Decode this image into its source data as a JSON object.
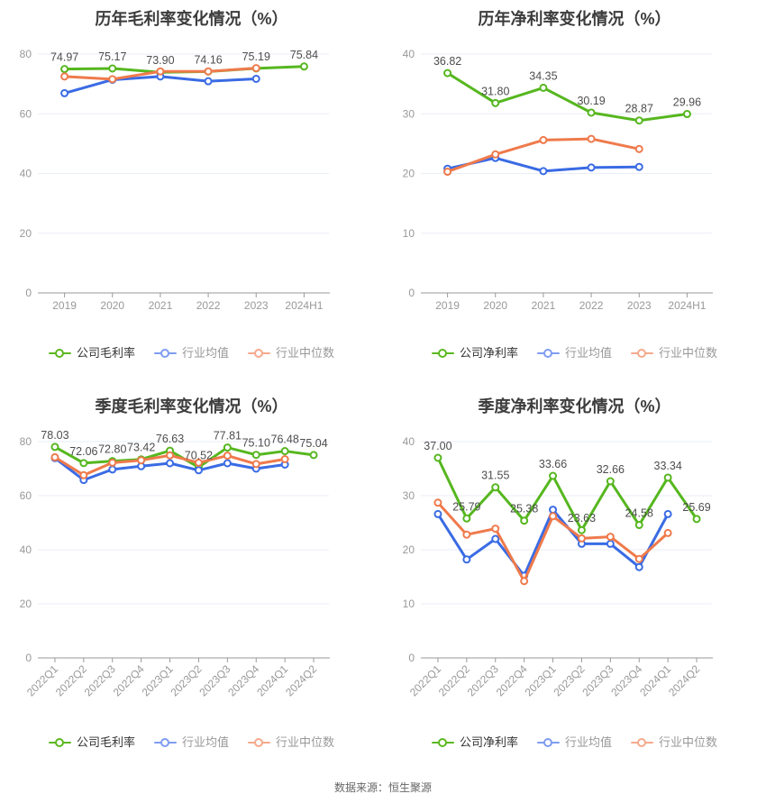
{
  "footer": {
    "source_note": "数据来源：恒生聚源"
  },
  "colors": {
    "company": "#56b71f",
    "industry_avg": "#3a6be4",
    "industry_median": "#ef7a4c",
    "legend_company": "#5cb821",
    "legend_industry_avg": "#7e9cf0",
    "legend_industry_median": "#f5a98c",
    "grid": "#e9eef7",
    "axis": "#999999",
    "tick_label": "#999999",
    "value_label": "#4d4d4d",
    "title": "#3c3c3c"
  },
  "chart_data": [
    {
      "id": "annual-gross-margin",
      "type": "line",
      "title": "历年毛利率变化情况（%）",
      "categories": [
        "2019",
        "2020",
        "2021",
        "2022",
        "2023",
        "2024H1"
      ],
      "ylim": [
        0,
        80
      ],
      "yticks": [
        0,
        20,
        40,
        60,
        80
      ],
      "grid": true,
      "legend_position": "bottom",
      "rotate_x_labels": false,
      "series": [
        {
          "key": "company",
          "name": "公司毛利率",
          "color": "#56b71f",
          "legend_color": "#5cb821",
          "point_labels": true,
          "values": [
            74.97,
            75.17,
            73.9,
            74.16,
            75.19,
            75.84
          ]
        },
        {
          "key": "industry-avg",
          "name": "行业均值",
          "color": "#3a6be4",
          "legend_color": "#7e9cf0",
          "point_labels": false,
          "values": [
            66.9,
            71.4,
            72.5,
            70.9,
            71.7
          ]
        },
        {
          "key": "industry-median",
          "name": "行业中位数",
          "color": "#ef7a4c",
          "legend_color": "#f5a98c",
          "point_labels": false,
          "values": [
            72.5,
            71.6,
            74.2,
            74.2,
            75.3
          ]
        }
      ]
    },
    {
      "id": "annual-net-margin",
      "type": "line",
      "title": "历年净利率变化情况（%）",
      "categories": [
        "2019",
        "2020",
        "2021",
        "2022",
        "2023",
        "2024H1"
      ],
      "ylim": [
        0,
        40
      ],
      "yticks": [
        0,
        10,
        20,
        30,
        40
      ],
      "grid": true,
      "legend_position": "bottom",
      "rotate_x_labels": false,
      "series": [
        {
          "key": "company",
          "name": "公司净利率",
          "color": "#56b71f",
          "legend_color": "#5cb821",
          "point_labels": true,
          "values": [
            36.82,
            31.8,
            34.35,
            30.19,
            28.87,
            29.96
          ]
        },
        {
          "key": "industry-avg",
          "name": "行业均值",
          "color": "#3a6be4",
          "legend_color": "#7e9cf0",
          "point_labels": false,
          "values": [
            20.8,
            22.6,
            20.4,
            21.0,
            21.1
          ]
        },
        {
          "key": "industry-median",
          "name": "行业中位数",
          "color": "#ef7a4c",
          "legend_color": "#f5a98c",
          "point_labels": false,
          "values": [
            20.3,
            23.2,
            25.6,
            25.8,
            24.1
          ]
        }
      ]
    },
    {
      "id": "quarterly-gross-margin",
      "type": "line",
      "title": "季度毛利率变化情况（%）",
      "categories": [
        "2022Q1",
        "2022Q2",
        "2022Q3",
        "2022Q4",
        "2023Q1",
        "2023Q2",
        "2023Q3",
        "2023Q4",
        "2024Q1",
        "2024Q2"
      ],
      "ylim": [
        0,
        80
      ],
      "yticks": [
        0,
        20,
        40,
        60,
        80
      ],
      "grid": true,
      "legend_position": "bottom",
      "rotate_x_labels": true,
      "series": [
        {
          "key": "company",
          "name": "公司毛利率",
          "color": "#56b71f",
          "legend_color": "#5cb821",
          "point_labels": true,
          "values": [
            78.03,
            72.06,
            72.8,
            73.42,
            76.63,
            70.52,
            77.81,
            75.1,
            76.48,
            75.04
          ]
        },
        {
          "key": "industry-avg",
          "name": "行业均值",
          "color": "#3a6be4",
          "legend_color": "#7e9cf0",
          "point_labels": false,
          "values": [
            73.9,
            65.8,
            69.7,
            70.9,
            72.0,
            69.4,
            72.0,
            70.0,
            71.5
          ]
        },
        {
          "key": "industry-median",
          "name": "行业中位数",
          "color": "#ef7a4c",
          "legend_color": "#f5a98c",
          "point_labels": false,
          "values": [
            74.2,
            67.6,
            72.2,
            73.1,
            74.9,
            72.2,
            74.8,
            71.7,
            73.5
          ]
        }
      ]
    },
    {
      "id": "quarterly-net-margin",
      "type": "line",
      "title": "季度净利率变化情况（%）",
      "categories": [
        "2022Q1",
        "2022Q2",
        "2022Q3",
        "2022Q4",
        "2023Q1",
        "2023Q2",
        "2023Q3",
        "2023Q4",
        "2024Q1",
        "2024Q2"
      ],
      "ylim": [
        0,
        40
      ],
      "yticks": [
        0,
        10,
        20,
        30,
        40
      ],
      "grid": true,
      "legend_position": "bottom",
      "rotate_x_labels": true,
      "series": [
        {
          "key": "company",
          "name": "公司净利率",
          "color": "#56b71f",
          "legend_color": "#5cb821",
          "point_labels": true,
          "values": [
            37.0,
            25.79,
            31.55,
            25.38,
            33.66,
            23.63,
            32.66,
            24.58,
            33.34,
            25.69
          ]
        },
        {
          "key": "industry-avg",
          "name": "行业均值",
          "color": "#3a6be4",
          "legend_color": "#7e9cf0",
          "point_labels": false,
          "values": [
            26.6,
            18.2,
            22.0,
            15.2,
            27.4,
            21.1,
            21.1,
            16.8,
            26.6
          ]
        },
        {
          "key": "industry-median",
          "name": "行业中位数",
          "color": "#ef7a4c",
          "legend_color": "#f5a98c",
          "point_labels": false,
          "values": [
            28.7,
            22.8,
            23.9,
            14.2,
            26.2,
            22.1,
            22.4,
            18.3,
            23.1
          ]
        }
      ]
    }
  ]
}
